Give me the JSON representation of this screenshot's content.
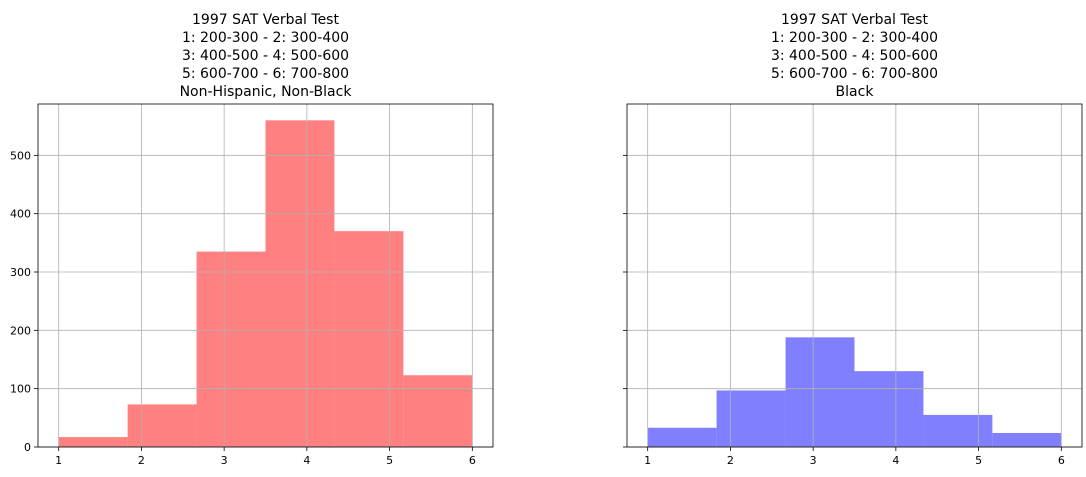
{
  "chart_data": [
    {
      "type": "bar",
      "title_lines": [
        "1997 SAT Verbal Test",
        "1: 200-300 - 2: 300-400",
        "3: 400-500 - 4: 500-600",
        "5: 600-700 - 6: 700-800",
        "Non-Hispanic, Non-Black"
      ],
      "xlabel": "",
      "ylabel": "",
      "bin_edges": [
        1.0,
        1.8333,
        2.6667,
        3.5,
        4.3333,
        5.1667,
        6.0
      ],
      "values": [
        17,
        73,
        335,
        560,
        370,
        123
      ],
      "xlim": [
        0.75,
        6.25
      ],
      "ylim": [
        0,
        588
      ],
      "x_ticks": [
        1,
        2,
        3,
        4,
        5,
        6
      ],
      "y_ticks": [
        0,
        100,
        200,
        300,
        400,
        500
      ],
      "color": "#ff8080",
      "grid": true
    },
    {
      "type": "bar",
      "title_lines": [
        "1997 SAT Verbal Test",
        "1: 200-300 - 2: 300-400",
        "3: 400-500 - 4: 500-600",
        "5: 600-700 - 6: 700-800",
        "Black"
      ],
      "xlabel": "",
      "ylabel": "",
      "bin_edges": [
        1.0,
        1.8333,
        2.6667,
        3.5,
        4.3333,
        5.1667,
        6.0
      ],
      "values": [
        33,
        97,
        188,
        130,
        55,
        24
      ],
      "xlim": [
        0.75,
        6.25
      ],
      "ylim": [
        0,
        588
      ],
      "x_ticks": [
        1,
        2,
        3,
        4,
        5,
        6
      ],
      "y_ticks": [
        0,
        100,
        200,
        300,
        400,
        500
      ],
      "color": "#8080ff",
      "grid": true
    }
  ]
}
